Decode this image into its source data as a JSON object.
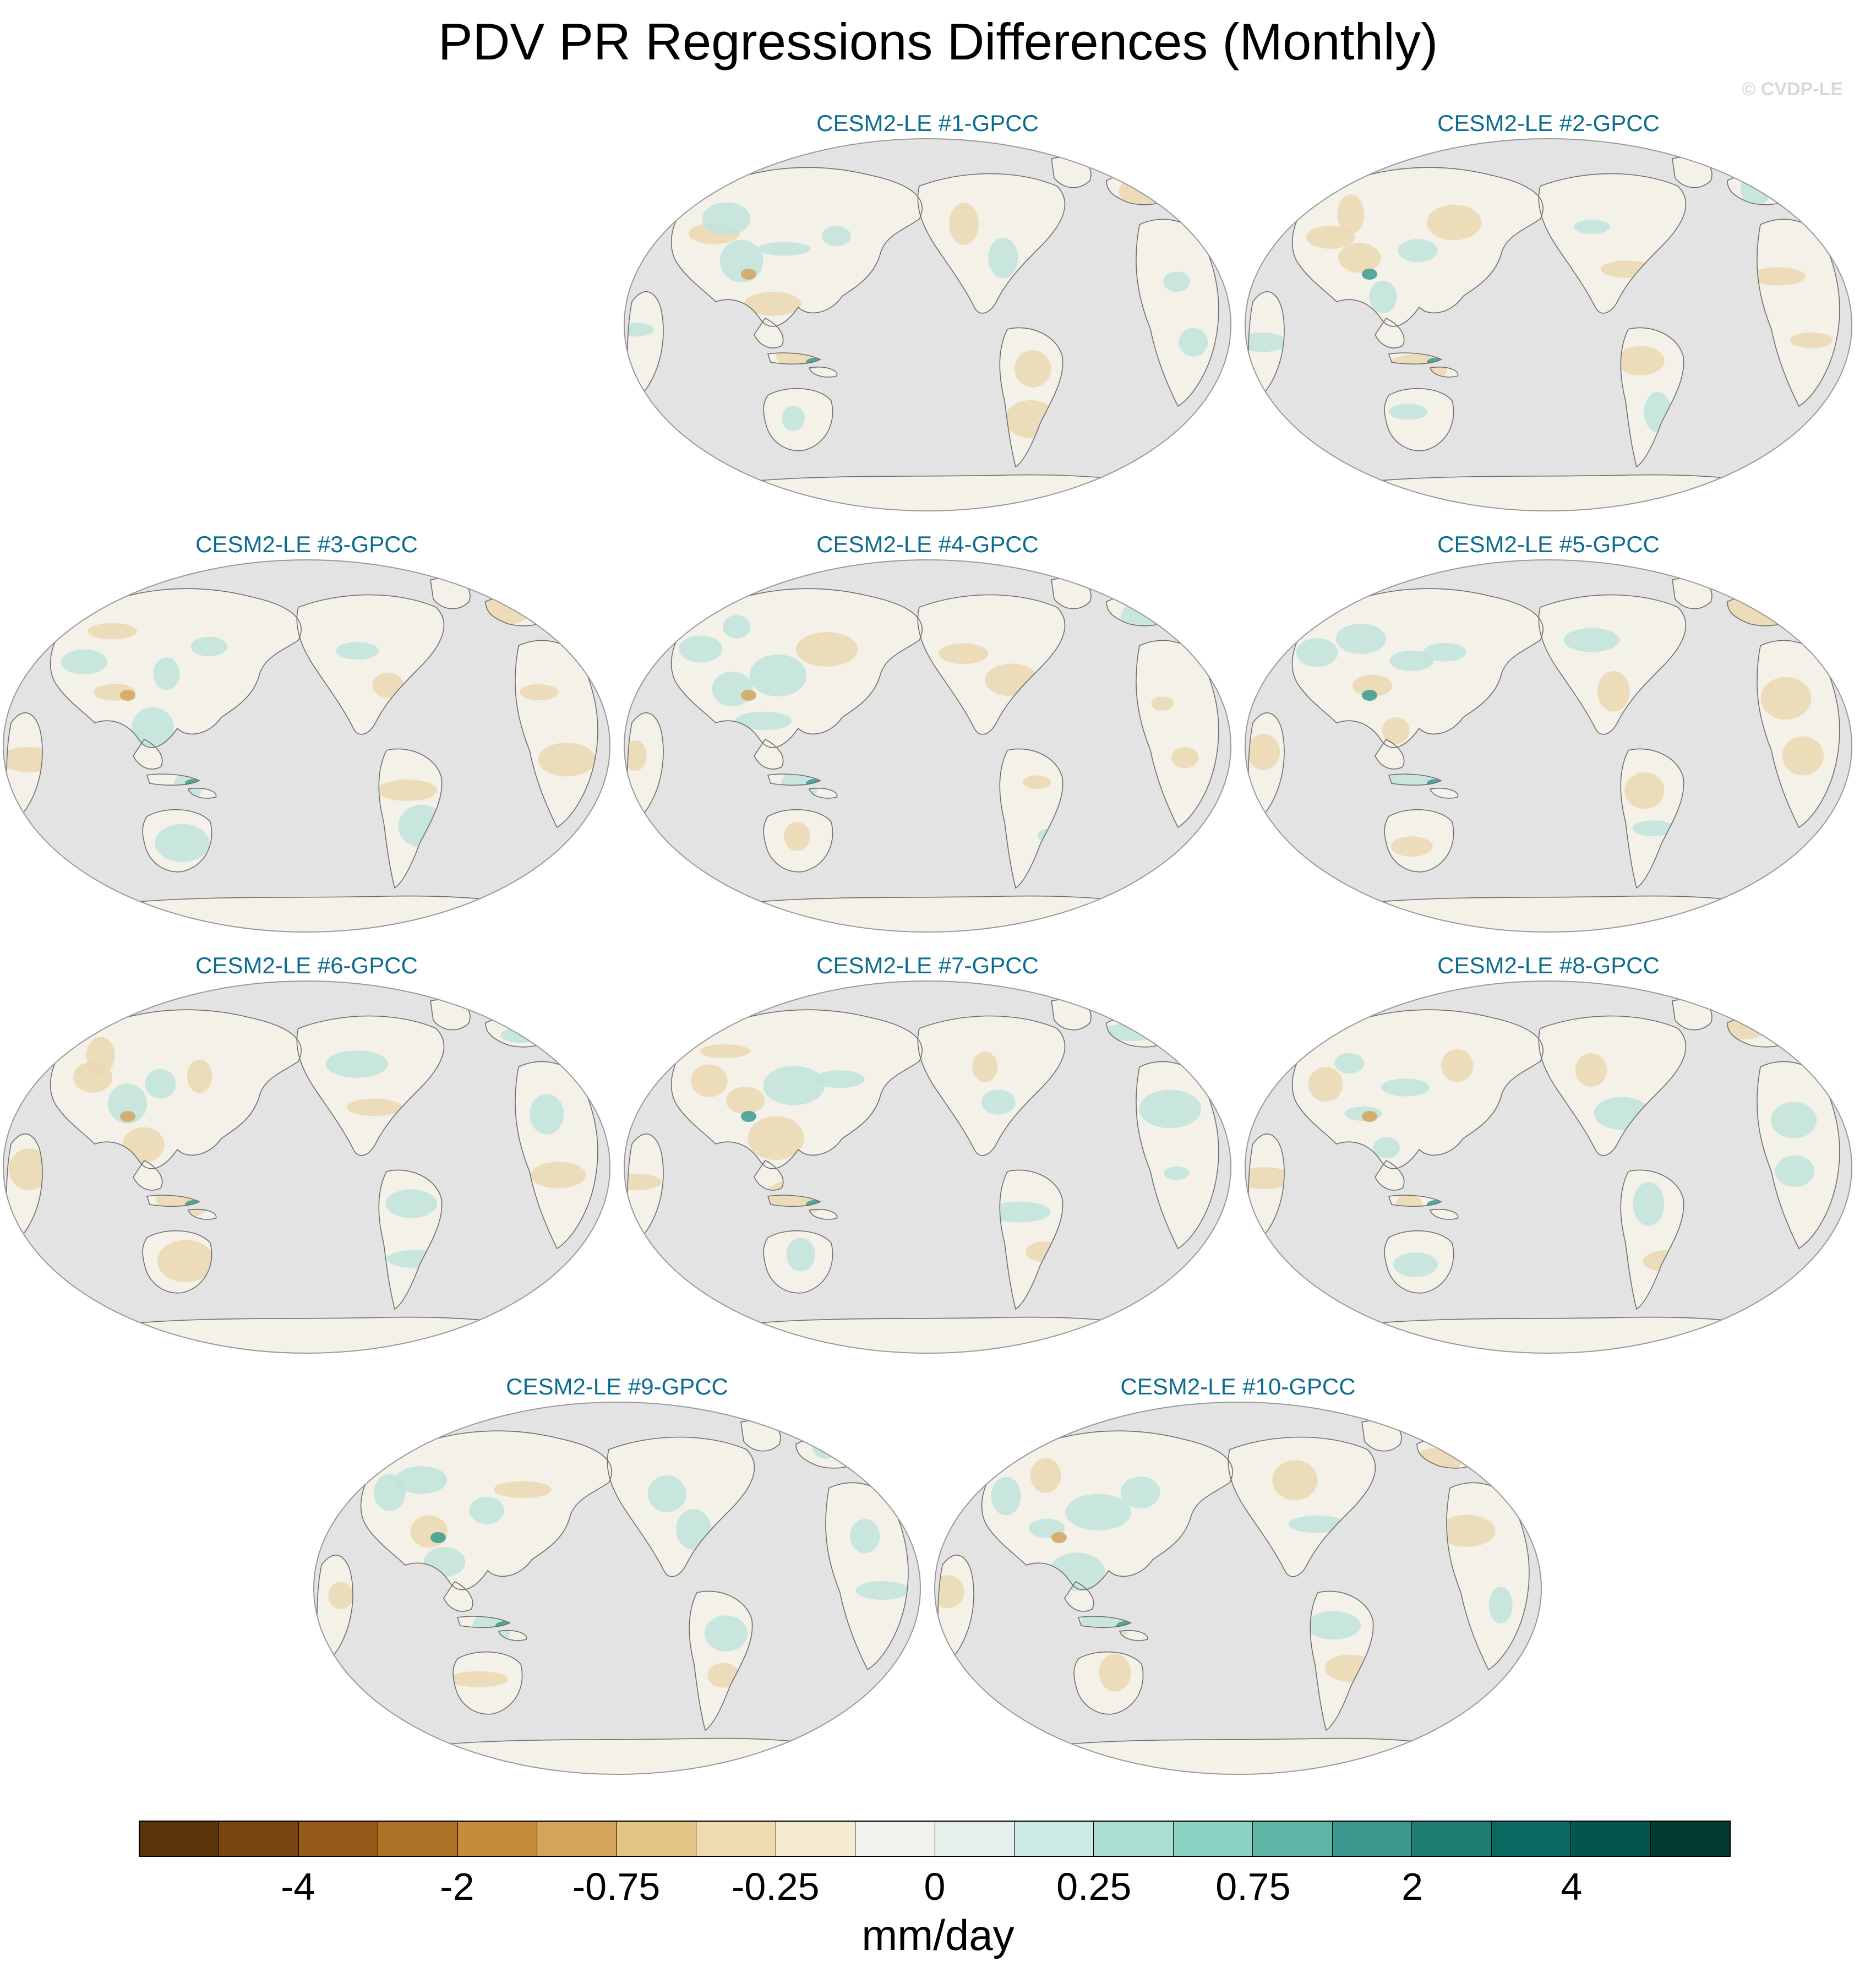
{
  "title": "PDV PR Regressions Differences (Monthly)",
  "watermark": "© CVDP-LE",
  "panels": [
    {
      "title": "CESM2-LE #1-GPCC"
    },
    {
      "title": "CESM2-LE #2-GPCC"
    },
    {
      "title": "CESM2-LE #3-GPCC"
    },
    {
      "title": "CESM2-LE #4-GPCC"
    },
    {
      "title": "CESM2-LE #5-GPCC"
    },
    {
      "title": "CESM2-LE #6-GPCC"
    },
    {
      "title": "CESM2-LE #7-GPCC"
    },
    {
      "title": "CESM2-LE #8-GPCC"
    },
    {
      "title": "CESM2-LE #9-GPCC"
    },
    {
      "title": "CESM2-LE #10-GPCC"
    }
  ],
  "colorbar": {
    "units": "mm/day",
    "tick_labels": [
      "-4",
      "-2",
      "-0.75",
      "-0.25",
      "0",
      "0.25",
      "0.75",
      "2",
      "4"
    ],
    "colors": [
      "#5a3509",
      "#7a4510",
      "#955a18",
      "#ad7226",
      "#c48c3c",
      "#d4a55c",
      "#e3c585",
      "#eedcae",
      "#f5ebd0",
      "#f3f1ec",
      "#e6efec",
      "#cdeae4",
      "#abdfd4",
      "#8cd3c3",
      "#5fb5a5",
      "#3b9a8d",
      "#1f7e73",
      "#07695f",
      "#04554c",
      "#033a33"
    ]
  },
  "map_colors": {
    "ocean": "#e3e3e3",
    "outline": "#9a9a9a",
    "coast": "#6e6e6e",
    "land_base": "#f4f1e9",
    "dry": "#ead8b0",
    "wet": "#bfe4dc",
    "strong_wet": "#3b9a8d",
    "strong_dry": "#d4a55c"
  }
}
